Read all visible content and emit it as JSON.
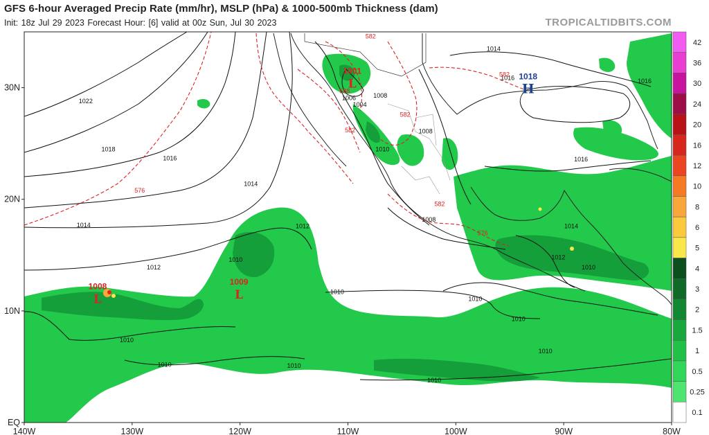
{
  "header": {
    "title": "GFS 6-hour Averaged Precip Rate (mm/hr), MSLP (hPa) & 1000-500mb Thickness (dam)",
    "subtitle": "Init: 18z Jul 29 2023   Forecast Hour: [6]   valid at 00z Sun, Jul 30 2023",
    "brand": "TROPICALTIDBITS.COM"
  },
  "map": {
    "lon_range": [
      -140,
      -80
    ],
    "lat_range": [
      0,
      35
    ],
    "lon_ticks": [
      "140W",
      "130W",
      "120W",
      "110W",
      "100W",
      "90W",
      "80W"
    ],
    "lat_ticks": [
      "EQ",
      "10N",
      "20N",
      "30N"
    ],
    "colors": {
      "land_border": "#222222",
      "isobar": "#111111",
      "thickness": "#dd2222",
      "precip_light": "#22c94a",
      "precip_mid": "#159f3a",
      "precip_dark": "#0c6b2a"
    },
    "pressure_centers": [
      {
        "type": "L",
        "value": "1008",
        "lon": -133.2,
        "lat": 11.2
      },
      {
        "type": "L",
        "value": "1009",
        "lon": -120.1,
        "lat": 11.6
      },
      {
        "type": "L",
        "value": "1001",
        "lon": -109.6,
        "lat": 30.5
      },
      {
        "type": "H",
        "value": "1018",
        "lon": -93.3,
        "lat": 30.0
      }
    ],
    "isobar_labels": [
      {
        "text": "1022",
        "lon": -134.3,
        "lat": 28.6
      },
      {
        "text": "1018",
        "lon": -132.2,
        "lat": 24.3
      },
      {
        "text": "1016",
        "lon": -126.5,
        "lat": 23.5
      },
      {
        "text": "1014",
        "lon": -119.0,
        "lat": 21.2
      },
      {
        "text": "1014",
        "lon": -134.5,
        "lat": 17.5
      },
      {
        "text": "1012",
        "lon": -128.0,
        "lat": 13.7
      },
      {
        "text": "1012",
        "lon": -114.2,
        "lat": 17.4
      },
      {
        "text": "1010",
        "lon": -120.4,
        "lat": 14.4
      },
      {
        "text": "1010",
        "lon": -111.0,
        "lat": 11.5
      },
      {
        "text": "1010",
        "lon": -130.5,
        "lat": 7.2
      },
      {
        "text": "1010",
        "lon": -127.0,
        "lat": 5.0
      },
      {
        "text": "1010",
        "lon": -115.0,
        "lat": 4.9
      },
      {
        "text": "1010",
        "lon": -102.0,
        "lat": 3.6
      },
      {
        "text": "1010",
        "lon": -98.2,
        "lat": 10.9
      },
      {
        "text": "1010",
        "lon": -94.2,
        "lat": 9.1
      },
      {
        "text": "1010",
        "lon": -91.7,
        "lat": 6.2
      },
      {
        "text": "1010",
        "lon": -87.7,
        "lat": 13.7
      },
      {
        "text": "1012",
        "lon": -90.5,
        "lat": 14.6
      },
      {
        "text": "1014",
        "lon": -89.3,
        "lat": 17.4
      },
      {
        "text": "1008",
        "lon": -107.0,
        "lat": 29.1
      },
      {
        "text": "1006",
        "lon": -109.9,
        "lat": 28.9
      },
      {
        "text": "1004",
        "lon": -108.9,
        "lat": 28.3
      },
      {
        "text": "1010",
        "lon": -106.8,
        "lat": 24.3
      },
      {
        "text": "1008",
        "lon": -102.8,
        "lat": 25.9
      },
      {
        "text": "1008",
        "lon": -102.5,
        "lat": 18.0
      },
      {
        "text": "1014",
        "lon": -96.5,
        "lat": 33.3
      },
      {
        "text": "1016",
        "lon": -95.2,
        "lat": 30.7
      },
      {
        "text": "1016",
        "lon": -88.4,
        "lat": 23.4
      },
      {
        "text": "1016",
        "lon": -82.5,
        "lat": 30.4
      }
    ],
    "thickness_labels": [
      {
        "text": "582",
        "lon": -107.9,
        "lat": 34.4
      },
      {
        "text": "588",
        "lon": -110.3,
        "lat": 29.5
      },
      {
        "text": "582",
        "lon": -104.7,
        "lat": 27.4
      },
      {
        "text": "582",
        "lon": -109.8,
        "lat": 26.0
      },
      {
        "text": "582",
        "lon": -95.5,
        "lat": 31.0
      },
      {
        "text": "576",
        "lon": -129.3,
        "lat": 20.6
      },
      {
        "text": "582",
        "lon": -101.5,
        "lat": 19.4
      },
      {
        "text": "576",
        "lon": -97.5,
        "lat": 16.8
      }
    ]
  },
  "colorbar": {
    "labels": [
      "42",
      "36",
      "30",
      "24",
      "20",
      "16",
      "12",
      "10",
      "8",
      "6",
      "5",
      "4",
      "3",
      "2",
      "1.5",
      "1",
      "0.5",
      "0.25",
      "0.1"
    ],
    "colors": [
      "#f25cf0",
      "#e83fd0",
      "#c7149e",
      "#9b0e48",
      "#b81218",
      "#d8261d",
      "#eb4521",
      "#f57a23",
      "#f9a73a",
      "#fbc93d",
      "#f8e64a",
      "#0b4f1f",
      "#0f6a28",
      "#138832",
      "#19a83c",
      "#21c147",
      "#2fd657",
      "#4de56f",
      "#ffffff"
    ]
  }
}
